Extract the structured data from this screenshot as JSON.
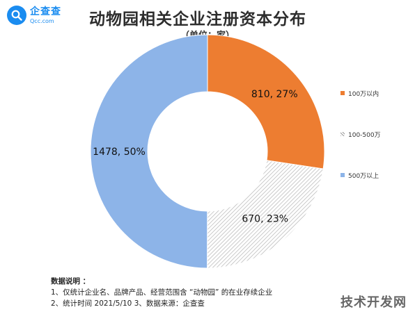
{
  "brand": {
    "name": "企查查",
    "domain": "Qcc.com"
  },
  "title": "动物园相关企业注册资本分布",
  "subtitle": "（单位：家）",
  "chart_data": {
    "type": "pie",
    "donut": true,
    "title": "动物园相关企业注册资本分布",
    "unit": "家",
    "legend_position": "right",
    "slices": [
      {
        "label": "100万以内",
        "value": 810,
        "percent": 27,
        "data_label": "810, 27%",
        "color": "#ed7d31",
        "pattern": "solid"
      },
      {
        "label": "100-500万",
        "value": 670,
        "percent": 23,
        "data_label": "670, 23%",
        "color": "#dcdcdc",
        "pattern": "hatched"
      },
      {
        "label": "500万以上",
        "value": 1478,
        "percent": 50,
        "data_label": "1478, 50%",
        "color": "#8db4e8",
        "pattern": "solid"
      }
    ]
  },
  "notes": {
    "heading": "数据说明 ：",
    "line1": "1、仅统计企业名、品牌产品、经营范围含 “动物园” 的在业存续企业",
    "line2": "2、统计时间  2021/5/10      3、数据来源：企查查"
  },
  "watermark": "技术开发网"
}
